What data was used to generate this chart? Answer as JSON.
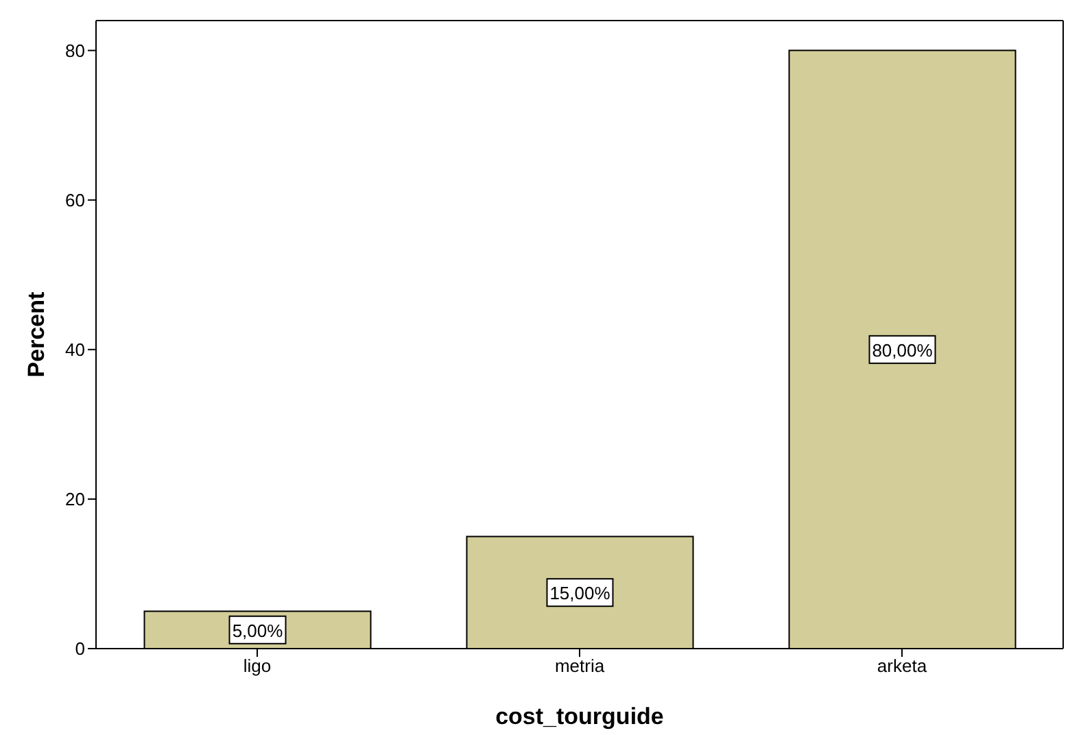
{
  "chart_data": {
    "type": "bar",
    "xlabel": "cost_tourguide",
    "ylabel": "Percent",
    "categories": [
      "ligo",
      "metria",
      "arketa"
    ],
    "values": [
      5,
      15,
      80
    ],
    "value_labels": [
      "5,00%",
      "15,00%",
      "80,00%"
    ],
    "color": "#d3ce99",
    "ylim": [
      0,
      84
    ],
    "yticks": [
      0,
      20,
      40,
      60,
      80
    ],
    "grid": false,
    "legend": false
  }
}
